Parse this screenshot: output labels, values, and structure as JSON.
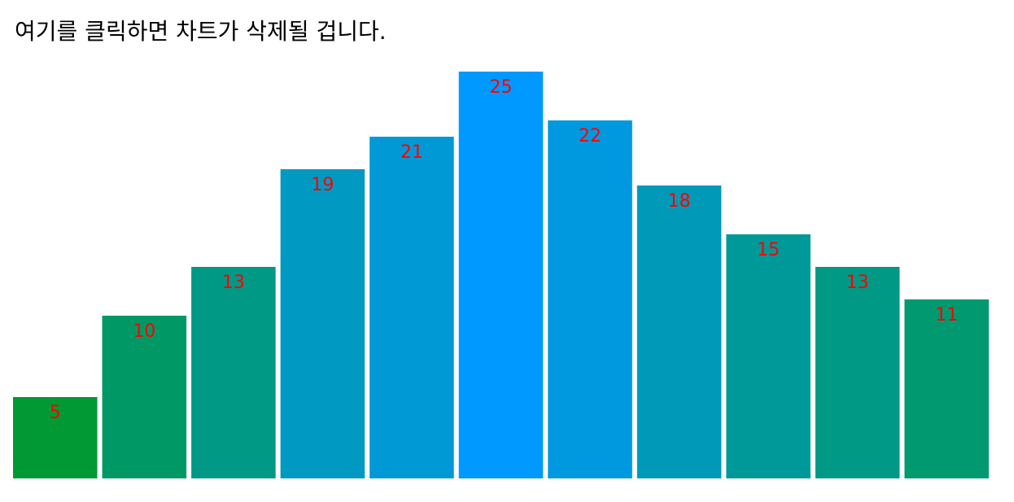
{
  "chart_data": {
    "type": "bar",
    "title": "여기를 클릭하면 차트가 삭제될 겁니다.",
    "values": [
      5,
      10,
      13,
      19,
      21,
      25,
      22,
      18,
      15,
      13,
      11
    ],
    "color_range": [
      "#009933",
      "#0099ff"
    ],
    "label_color": "#ff0000"
  }
}
